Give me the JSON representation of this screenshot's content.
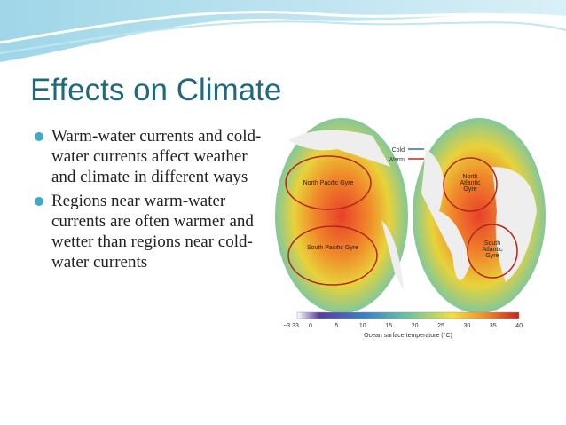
{
  "header": {
    "title": "Effects on Climate"
  },
  "bullets": [
    "Warm-water currents and cold-water currents affect weather and climate in different ways",
    "Regions near warm-water currents are often warmer and wetter than regions near cold-water currents"
  ],
  "figure": {
    "legend": [
      "Cold",
      "Warm"
    ],
    "gyres": [
      "North Pacific Gyre",
      "North Atlantic Gyre",
      "South Pacific Gyre",
      "South Atlantic Gyre"
    ],
    "colorbar_ticks": [
      "−3.33",
      "0",
      "5",
      "10",
      "15",
      "20",
      "25",
      "30",
      "35",
      "40"
    ],
    "colorbar_label": "Ocean surface temperature (°C)"
  }
}
